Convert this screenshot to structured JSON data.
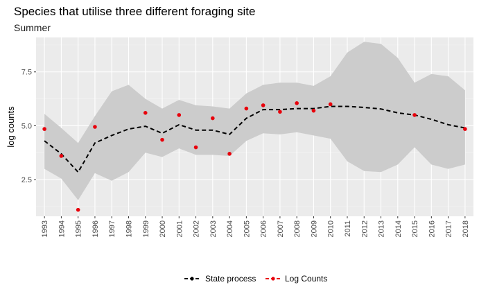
{
  "chart_data": {
    "type": "line",
    "title": "Species that utilise three different foraging site",
    "subtitle": "Summer",
    "xlabel": "",
    "ylabel": "log counts",
    "x": [
      1993,
      1994,
      1995,
      1996,
      1997,
      1998,
      1999,
      2000,
      2001,
      2002,
      2003,
      2004,
      2005,
      2006,
      2007,
      2008,
      2009,
      2010,
      2011,
      2012,
      2013,
      2014,
      2015,
      2016,
      2017,
      2018
    ],
    "x_tick_labels": [
      "1993",
      "1994",
      "1995",
      "1996",
      "1997",
      "1998",
      "1999",
      "2000",
      "2001",
      "2002",
      "2003",
      "2004",
      "2005",
      "2006",
      "2007",
      "2008",
      "2009",
      "2010",
      "2011",
      "2012",
      "2013",
      "2014",
      "2015",
      "2016",
      "2017",
      "2018"
    ],
    "y_ticks": [
      2.5,
      5.0,
      7.5
    ],
    "y_tick_labels": [
      "2.5",
      "5.0",
      "7.5"
    ],
    "ylim": [
      0.8,
      9.1
    ],
    "grid": true,
    "legend_position": "bottom",
    "series": [
      {
        "name": "State process",
        "type": "line",
        "style": "dashed",
        "color": "#000000",
        "values": [
          4.3,
          3.7,
          2.85,
          4.2,
          4.55,
          4.85,
          4.98,
          4.65,
          5.05,
          4.8,
          4.8,
          4.6,
          5.35,
          5.75,
          5.75,
          5.8,
          5.8,
          5.9,
          5.9,
          5.85,
          5.78,
          5.6,
          5.5,
          5.3,
          5.05,
          4.9
        ],
        "lower": [
          3.0,
          2.55,
          1.55,
          2.8,
          2.45,
          2.85,
          3.75,
          3.55,
          3.95,
          3.65,
          3.65,
          3.6,
          4.3,
          4.65,
          4.6,
          4.7,
          4.55,
          4.4,
          3.35,
          2.9,
          2.85,
          3.2,
          4.0,
          3.2,
          3.0,
          3.2
        ],
        "upper": [
          5.55,
          4.9,
          4.2,
          5.45,
          6.6,
          6.9,
          6.25,
          5.8,
          6.2,
          5.95,
          5.9,
          5.8,
          6.5,
          6.9,
          7.0,
          7.0,
          6.85,
          7.3,
          8.4,
          8.9,
          8.8,
          8.15,
          7.0,
          7.4,
          7.3,
          6.65
        ],
        "band_color": "#cccccc"
      },
      {
        "name": "Log Counts",
        "type": "scatter",
        "color": "#e8000b",
        "values": [
          4.85,
          3.6,
          1.1,
          4.95,
          null,
          null,
          5.6,
          4.35,
          5.5,
          4.0,
          5.35,
          3.7,
          5.8,
          5.95,
          5.65,
          6.05,
          5.7,
          6.0,
          null,
          null,
          null,
          null,
          5.5,
          null,
          null,
          4.85
        ]
      }
    ]
  }
}
